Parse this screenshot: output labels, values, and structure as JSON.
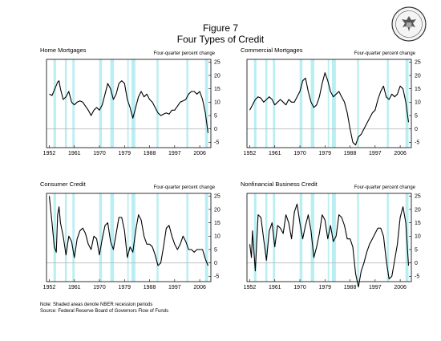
{
  "header": {
    "figure_label": "Figure 7",
    "title": "Four Types of Credit",
    "seal_text": "THE FEDERAL RESERVE SYSTEM"
  },
  "notes": {
    "line1": "Note: Shaded areas denote NBER recession periods",
    "line2": "Source: Federal Reserve Board of Governors Flow of Funds"
  },
  "colors": {
    "recession": "#b9eef3",
    "line": "#000000",
    "zero_line": "#bbbbbb"
  },
  "recessions": [
    [
      1953.5,
      1954.4
    ],
    [
      1957.6,
      1958.3
    ],
    [
      1960.3,
      1961.1
    ],
    [
      1969.9,
      1970.9
    ],
    [
      1973.9,
      1975.2
    ],
    [
      1980.0,
      1980.5
    ],
    [
      1981.5,
      1982.9
    ],
    [
      1990.5,
      1991.2
    ],
    [
      2001.2,
      2001.9
    ],
    [
      2007.9,
      2009.0
    ]
  ],
  "chart_data": [
    {
      "type": "line",
      "title": "Home Mortgages",
      "units": "Four-quarter percent change",
      "ylim": [
        -7,
        26
      ],
      "xlim": [
        1951,
        2010
      ],
      "yticks": [
        -5,
        0,
        5,
        10,
        15,
        20,
        25
      ],
      "xticks": [
        1952,
        1961,
        1970,
        1979,
        1988,
        1997,
        2006
      ],
      "grid": false,
      "series": [
        {
          "x": [
            1952,
            1953,
            1954,
            1955,
            1955.5,
            1956,
            1957,
            1958,
            1959,
            1960,
            1961,
            1962,
            1963,
            1964,
            1965,
            1966,
            1967,
            1968,
            1969,
            1970,
            1971,
            1972,
            1973,
            1974,
            1975,
            1976,
            1977,
            1978,
            1979,
            1980,
            1981,
            1982,
            1983,
            1984,
            1985,
            1986,
            1987,
            1988,
            1989,
            1990,
            1991,
            1992,
            1993,
            1994,
            1995,
            1996,
            1997,
            1998,
            1999,
            2000,
            2001,
            2002,
            2003,
            2004,
            2005,
            2006,
            2007,
            2008,
            2009
          ],
          "y": [
            13,
            12.5,
            15,
            17.5,
            18,
            15,
            11,
            12,
            14,
            10,
            9,
            10,
            10.5,
            10,
            8.5,
            7,
            5,
            7,
            8,
            7,
            9,
            13,
            17,
            15,
            11,
            13,
            17,
            18,
            17,
            11,
            8,
            4,
            8,
            12,
            14,
            12,
            13,
            11,
            10,
            8,
            6,
            5,
            5.5,
            6,
            5.5,
            7,
            7,
            8.5,
            10,
            10.5,
            11,
            13,
            14,
            14,
            13,
            14,
            11,
            6,
            -1.5
          ]
        }
      ]
    },
    {
      "type": "line",
      "title": "Commercial Mortgages",
      "units": "Four-quarter percent change",
      "ylim": [
        -7,
        26
      ],
      "xlim": [
        1951,
        2010
      ],
      "yticks": [
        -5,
        0,
        5,
        10,
        15,
        20,
        25
      ],
      "xticks": [
        1952,
        1961,
        1970,
        1979,
        1988,
        1997,
        2006
      ],
      "grid": false,
      "series": [
        {
          "x": [
            1952,
            1953,
            1954,
            1955,
            1956,
            1957,
            1958,
            1959,
            1960,
            1961,
            1962,
            1963,
            1964,
            1965,
            1966,
            1967,
            1968,
            1969,
            1970,
            1971,
            1972,
            1973,
            1974,
            1975,
            1976,
            1977,
            1978,
            1979,
            1980,
            1981,
            1982,
            1983,
            1984,
            1985,
            1986,
            1987,
            1988,
            1989,
            1990,
            1991,
            1992,
            1993,
            1994,
            1995,
            1996,
            1997,
            1998,
            1999,
            2000,
            2001,
            2002,
            2003,
            2004,
            2005,
            2006,
            2007,
            2008,
            2009
          ],
          "y": [
            7,
            9,
            11,
            12,
            11.5,
            10,
            11,
            12,
            11,
            9,
            10,
            11,
            10,
            9,
            11,
            10,
            10,
            12,
            14,
            18,
            19,
            14,
            10,
            8,
            9,
            12,
            17,
            21,
            18,
            14,
            12,
            13,
            14,
            12,
            10,
            6,
            0,
            -5,
            -6,
            -3,
            -2,
            0,
            2,
            4,
            6,
            7,
            11,
            14,
            16,
            12,
            11,
            13,
            12,
            13,
            16,
            15,
            10,
            2.5
          ]
        }
      ]
    },
    {
      "type": "line",
      "title": "Consumer Credit",
      "units": "Four-quarter percent change",
      "ylim": [
        -7,
        26
      ],
      "xlim": [
        1951,
        2010
      ],
      "yticks": [
        -5,
        0,
        5,
        10,
        15,
        20,
        25
      ],
      "xticks": [
        1952,
        1961,
        1970,
        1979,
        1988,
        1997,
        2006
      ],
      "grid": false,
      "series": [
        {
          "x": [
            1952,
            1952.5,
            1953,
            1953.8,
            1954.5,
            1955,
            1955.5,
            1956,
            1957,
            1958,
            1959,
            1960,
            1961,
            1962,
            1963,
            1964,
            1965,
            1966,
            1967,
            1968,
            1969,
            1970,
            1971,
            1972,
            1973,
            1974,
            1975,
            1976,
            1977,
            1978,
            1979,
            1980,
            1981,
            1982,
            1983,
            1984,
            1985,
            1986,
            1987,
            1988,
            1989,
            1990,
            1991,
            1992,
            1993,
            1994,
            1995,
            1996,
            1997,
            1998,
            1999,
            2000,
            2001,
            2002,
            2003,
            2004,
            2005,
            2006,
            2007,
            2008,
            2009
          ],
          "y": [
            25,
            20,
            15,
            6,
            4,
            18,
            21,
            15,
            10,
            3,
            10,
            8,
            2,
            9,
            12,
            13,
            11,
            7,
            5,
            10,
            9,
            3,
            9,
            14,
            15,
            8,
            5,
            11,
            17,
            17,
            12,
            2,
            6,
            4,
            12,
            18,
            16,
            10,
            7,
            7,
            6,
            3,
            -1,
            0,
            6,
            13,
            14,
            10,
            7,
            5,
            7,
            10,
            8,
            5,
            5,
            4,
            5,
            5,
            5,
            1.5,
            -1
          ]
        }
      ]
    },
    {
      "type": "line",
      "title": "Nonfinancial Business Credit",
      "units": "Four-quarter percent change",
      "ylim": [
        -7,
        26
      ],
      "xlim": [
        1951,
        2010
      ],
      "yticks": [
        -5,
        0,
        5,
        10,
        15,
        20,
        25
      ],
      "xticks": [
        1952,
        1961,
        1970,
        1979,
        1988,
        1997,
        2006
      ],
      "grid": false,
      "series": [
        {
          "x": [
            1952,
            1952.6,
            1953,
            1954,
            1955,
            1956,
            1957,
            1958,
            1959,
            1960,
            1961,
            1962,
            1963,
            1964,
            1965,
            1966,
            1967,
            1968,
            1969,
            1970,
            1971,
            1972,
            1973,
            1974,
            1975,
            1976,
            1977,
            1978,
            1979,
            1980,
            1981,
            1982,
            1983,
            1984,
            1985,
            1986,
            1987,
            1988,
            1989,
            1990,
            1991,
            1992,
            1993,
            1994,
            1995,
            1996,
            1997,
            1998,
            1999,
            2000,
            2001,
            2002,
            2003,
            2004,
            2005,
            2006,
            2007,
            2008,
            2009
          ],
          "y": [
            7,
            2,
            12,
            -3,
            18,
            17,
            9,
            1,
            12,
            15,
            6,
            14,
            13,
            11,
            18,
            15,
            9,
            19,
            22,
            15,
            9,
            14,
            18,
            12,
            2,
            6,
            11,
            18,
            16,
            9,
            14,
            8,
            10,
            18,
            17,
            14,
            9,
            9,
            6,
            -4,
            -9,
            -3,
            0,
            4,
            7,
            9,
            11,
            13,
            13,
            10,
            1,
            -6,
            -5,
            1,
            7,
            17,
            21,
            15,
            -1
          ]
        }
      ]
    }
  ]
}
